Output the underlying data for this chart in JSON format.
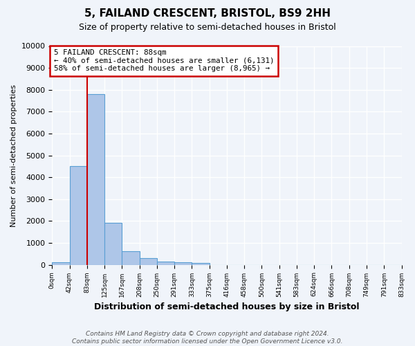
{
  "title": "5, FAILAND CRESCENT, BRISTOL, BS9 2HH",
  "subtitle": "Size of property relative to semi-detached houses in Bristol",
  "xlabel": "Distribution of semi-detached houses by size in Bristol",
  "ylabel": "Number of semi-detached properties",
  "bin_labels": [
    "0sqm",
    "42sqm",
    "83sqm",
    "125sqm",
    "167sqm",
    "208sqm",
    "250sqm",
    "291sqm",
    "333sqm",
    "375sqm",
    "416sqm",
    "458sqm",
    "500sqm",
    "541sqm",
    "583sqm",
    "624sqm",
    "666sqm",
    "708sqm",
    "749sqm",
    "791sqm",
    "833sqm"
  ],
  "bar_values": [
    120,
    4500,
    7800,
    1920,
    620,
    290,
    160,
    100,
    90,
    0,
    0,
    0,
    0,
    0,
    0,
    0,
    0,
    0,
    0,
    0
  ],
  "bar_color": "#aec6e8",
  "bar_edge_color": "#5a9fd4",
  "property_line_x": 2,
  "property_line_label": "5 FAILAND CRESCENT: 88sqm",
  "annotation_smaller": "← 40% of semi-detached houses are smaller (6,131)",
  "annotation_larger": "58% of semi-detached houses are larger (8,965) →",
  "annotation_box_color": "#ffffff",
  "annotation_box_edge": "#cc0000",
  "vline_color": "#cc0000",
  "ylim": [
    0,
    10000
  ],
  "yticks": [
    0,
    1000,
    2000,
    3000,
    4000,
    5000,
    6000,
    7000,
    8000,
    9000,
    10000
  ],
  "footer": "Contains HM Land Registry data © Crown copyright and database right 2024.\nContains public sector information licensed under the Open Government Licence v3.0.",
  "background_color": "#f0f4fa",
  "grid_color": "#ffffff"
}
